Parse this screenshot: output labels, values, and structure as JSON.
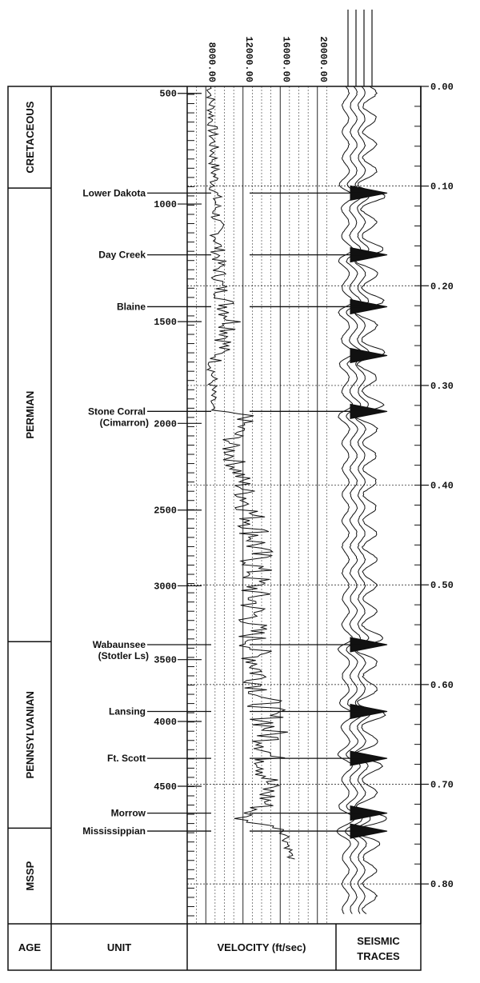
{
  "header": {
    "age": "AGE",
    "unit": "UNIT",
    "velocity": "VELOCITY (ft/sec)",
    "seismic_line1": "SEISMIC",
    "seismic_line2": "TRACES"
  },
  "ages": [
    {
      "label": "CRETACEOUS",
      "from": 0,
      "to": 0.102
    },
    {
      "label": "PERMIAN",
      "from": 0.102,
      "to": 0.557
    },
    {
      "label": "PENNSYLVANIAN",
      "from": 0.557,
      "to": 0.744
    },
    {
      "label": "MSSP",
      "from": 0.744,
      "to": 0.84
    }
  ],
  "depth_ticks": [
    {
      "label": "500",
      "time": 0.007
    },
    {
      "label": "1000",
      "time": 0.118
    },
    {
      "label": "1500",
      "time": 0.236
    },
    {
      "label": "2000",
      "time": 0.338
    },
    {
      "label": "2500",
      "time": 0.425
    },
    {
      "label": "3000",
      "time": 0.501
    },
    {
      "label": "3500",
      "time": 0.575
    },
    {
      "label": "4000",
      "time": 0.637
    },
    {
      "label": "4500",
      "time": 0.702
    }
  ],
  "units": [
    {
      "label": "Lower Dakota",
      "time": 0.107
    },
    {
      "label": "Day Creek",
      "time": 0.169
    },
    {
      "label": "Blaine",
      "time": 0.221
    },
    {
      "label": "Stone Corral",
      "sublabel": "(Cimarron)",
      "time": 0.326
    },
    {
      "label": "Wabaunsee",
      "sublabel": "(Stotler Ls)",
      "time": 0.56
    },
    {
      "label": "Lansing",
      "time": 0.627
    },
    {
      "label": "Ft. Scott",
      "time": 0.674
    },
    {
      "label": "Morrow",
      "time": 0.729
    },
    {
      "label": "Mississippian",
      "time": 0.747
    }
  ],
  "time_axis": {
    "labels": [
      "0.00",
      "0.10",
      "0.20",
      "0.30",
      "0.40",
      "0.50",
      "0.60",
      "0.70",
      "0.80"
    ],
    "range": [
      0,
      0.84
    ]
  },
  "velocity_axis": {
    "labels": [
      "8000.00",
      "12000.00",
      "16000.00",
      "20000.00"
    ],
    "range": [
      6000,
      22000
    ]
  },
  "velocity_log": {
    "top_time": 0.0,
    "bottom_time": 0.775,
    "zones": [
      {
        "time": 0.0,
        "base": 8500,
        "amp": 500
      },
      {
        "time": 0.1,
        "base": 9000,
        "amp": 700
      },
      {
        "time": 0.2,
        "base": 9500,
        "amp": 900
      },
      {
        "time": 0.24,
        "base": 11000,
        "amp": 1600
      },
      {
        "time": 0.28,
        "base": 8800,
        "amp": 700
      },
      {
        "time": 0.325,
        "base": 8600,
        "amp": 400
      },
      {
        "time": 0.33,
        "base": 12500,
        "amp": 1000
      },
      {
        "time": 0.36,
        "base": 10500,
        "amp": 1200
      },
      {
        "time": 0.4,
        "base": 12000,
        "amp": 1300
      },
      {
        "time": 0.45,
        "base": 13500,
        "amp": 2000
      },
      {
        "time": 0.55,
        "base": 13000,
        "amp": 1800
      },
      {
        "time": 0.6,
        "base": 14000,
        "amp": 1900
      },
      {
        "time": 0.65,
        "base": 15000,
        "amp": 2100
      },
      {
        "time": 0.72,
        "base": 14500,
        "amp": 1500
      },
      {
        "time": 0.735,
        "base": 11500,
        "amp": 900
      },
      {
        "time": 0.745,
        "base": 16500,
        "amp": 700
      },
      {
        "time": 0.775,
        "base": 17200,
        "amp": 400
      }
    ]
  },
  "seismic": {
    "trace_count": 4,
    "wiggle_period_s": 0.026,
    "strong_events": [
      0.107,
      0.169,
      0.221,
      0.27,
      0.326,
      0.56,
      0.627,
      0.674,
      0.729,
      0.747
    ]
  }
}
